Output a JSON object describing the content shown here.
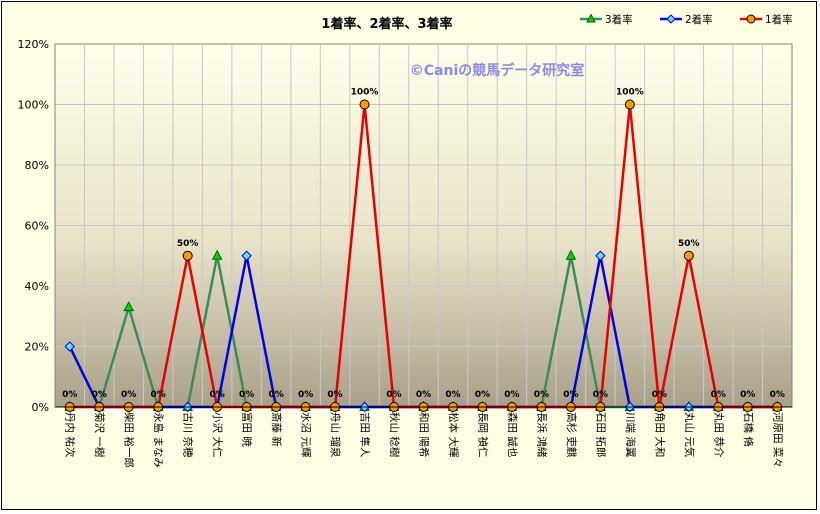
{
  "chart_data": {
    "type": "line",
    "title": "1着率、2着率、3着率",
    "watermark": "©Caniの競馬データ研究室",
    "xlabel": "",
    "ylabel": "",
    "ylim": [
      0,
      120
    ],
    "yticks": [
      "0%",
      "20%",
      "40%",
      "60%",
      "80%",
      "100%",
      "120%"
    ],
    "grid": true,
    "legend_position": "top-right",
    "categories": [
      "丹内 祐次",
      "菊沢 一樹",
      "柴田 裕一郎",
      "永島 まなみ",
      "古川 奈穂",
      "小沢 大仁",
      "富田 暁",
      "斎藤 新",
      "水沼 元輝",
      "舟山 瑠泉",
      "吉田 隼人",
      "秋山 稔樹",
      "和田 陽希",
      "松本 大輝",
      "長岡 禎仁",
      "森田 誠也",
      "長浜 鴻緒",
      "高杉 吏麒",
      "石田 拓郎",
      "川端 海翼",
      "角田 大和",
      "丸山 元気",
      "丸田 恭介",
      "石橋 脩",
      "河原田 菜々"
    ],
    "series": [
      {
        "name": "3着率",
        "color": "#3c8c5a",
        "marker": "triangle",
        "values": [
          0,
          0,
          33,
          0,
          0,
          50,
          0,
          0,
          0,
          0,
          0,
          0,
          0,
          0,
          0,
          0,
          0,
          50,
          0,
          0,
          0,
          0,
          0,
          0,
          0
        ]
      },
      {
        "name": "2着率",
        "color": "#0000e6",
        "marker": "diamond",
        "values": [
          20,
          0,
          0,
          0,
          0,
          0,
          50,
          0,
          0,
          0,
          0,
          0,
          0,
          0,
          0,
          0,
          0,
          0,
          50,
          0,
          0,
          0,
          0,
          0,
          0
        ]
      },
      {
        "name": "1着率",
        "color": "#e60000",
        "marker": "circle",
        "values": [
          0,
          0,
          0,
          0,
          50,
          0,
          0,
          0,
          0,
          0,
          100,
          0,
          0,
          0,
          0,
          0,
          0,
          0,
          0,
          100,
          0,
          50,
          0,
          0,
          0
        ]
      }
    ],
    "data_labels": [
      "0%",
      "0%",
      "0%",
      "0%",
      "50%",
      "0%",
      "0%",
      "0%",
      "0%",
      "0%",
      "100%",
      "0%",
      "0%",
      "0%",
      "0%",
      "0%",
      "0%",
      "0%",
      "0%",
      "100%",
      "0%",
      "50%",
      "0%",
      "0%",
      "0%"
    ]
  }
}
